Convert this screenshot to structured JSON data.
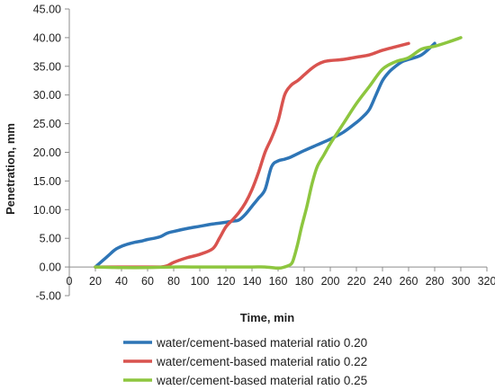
{
  "chart_data": {
    "type": "line",
    "title": "",
    "xlabel": "Time, min",
    "ylabel": "Penetration, mm",
    "xlim": [
      0,
      320
    ],
    "ylim": [
      -5,
      45
    ],
    "x_ticks": [
      0,
      20,
      40,
      60,
      80,
      100,
      120,
      140,
      160,
      180,
      200,
      220,
      240,
      260,
      280,
      300,
      320
    ],
    "x_tick_labels": [
      "0",
      "20",
      "40",
      "60",
      "80",
      "100",
      "120",
      "140",
      "160",
      "180",
      "200",
      "220",
      "240",
      "260",
      "280",
      "300",
      "320"
    ],
    "y_ticks": [
      -5,
      0,
      5,
      10,
      15,
      20,
      25,
      30,
      35,
      40,
      45
    ],
    "y_tick_labels": [
      "-5.00",
      "0.00",
      "5.00",
      "10.00",
      "15.00",
      "20.00",
      "25.00",
      "30.00",
      "35.00",
      "40.00",
      "45.00"
    ],
    "grid": false,
    "legend_position": "bottom",
    "series": [
      {
        "name": "water/cement-based material ratio 0.20",
        "color": "#2e75b6",
        "x": [
          20,
          25,
          30,
          35,
          40,
          45,
          50,
          55,
          60,
          65,
          70,
          75,
          80,
          90,
          100,
          110,
          120,
          125,
          130,
          135,
          140,
          145,
          150,
          155,
          160,
          165,
          170,
          180,
          190,
          200,
          210,
          220,
          225,
          230,
          235,
          240,
          245,
          250,
          255,
          260,
          270,
          280
        ],
        "y": [
          0,
          1,
          2,
          3,
          3.6,
          4.0,
          4.3,
          4.5,
          4.8,
          5.0,
          5.3,
          5.9,
          6.2,
          6.7,
          7.1,
          7.5,
          7.8,
          8.0,
          8.2,
          9.2,
          10.6,
          12.0,
          13.5,
          17.5,
          18.5,
          18.8,
          19.2,
          20.3,
          21.3,
          22.3,
          23.5,
          25.2,
          26.2,
          27.5,
          30.0,
          32.5,
          34.0,
          35.0,
          35.8,
          36.2,
          37.0,
          39.0
        ]
      },
      {
        "name": "water/cement-based material ratio 0.22",
        "color": "#d9534f",
        "x": [
          20,
          40,
          60,
          70,
          75,
          80,
          90,
          100,
          110,
          115,
          120,
          125,
          130,
          135,
          140,
          145,
          150,
          155,
          160,
          165,
          170,
          175,
          180,
          185,
          190,
          195,
          200,
          210,
          220,
          230,
          240,
          250,
          260
        ],
        "y": [
          0,
          0,
          0,
          0,
          0.2,
          0.8,
          1.6,
          2.2,
          3.2,
          5.0,
          7.0,
          8.2,
          9.5,
          11.2,
          13.5,
          16.5,
          20.0,
          22.5,
          25.5,
          30.0,
          31.7,
          32.5,
          33.5,
          34.5,
          35.3,
          35.8,
          36.0,
          36.2,
          36.6,
          37.0,
          37.8,
          38.4,
          39.0
        ]
      },
      {
        "name": "water/cement-based material ratio 0.25",
        "color": "#8dc63f",
        "x": [
          20,
          40,
          60,
          80,
          100,
          120,
          140,
          150,
          160,
          165,
          170,
          172,
          175,
          178,
          182,
          186,
          190,
          195,
          200,
          210,
          220,
          230,
          240,
          250,
          260,
          270,
          280,
          290,
          300
        ],
        "y": [
          0,
          -0.1,
          -0.1,
          0,
          0,
          0,
          0,
          0,
          -0.2,
          0,
          0.5,
          1.5,
          4.0,
          7.0,
          10.5,
          14.5,
          17.5,
          19.5,
          21.5,
          25.0,
          28.5,
          31.5,
          34.5,
          35.8,
          36.5,
          38.0,
          38.5,
          39.2,
          40.0
        ]
      }
    ]
  }
}
